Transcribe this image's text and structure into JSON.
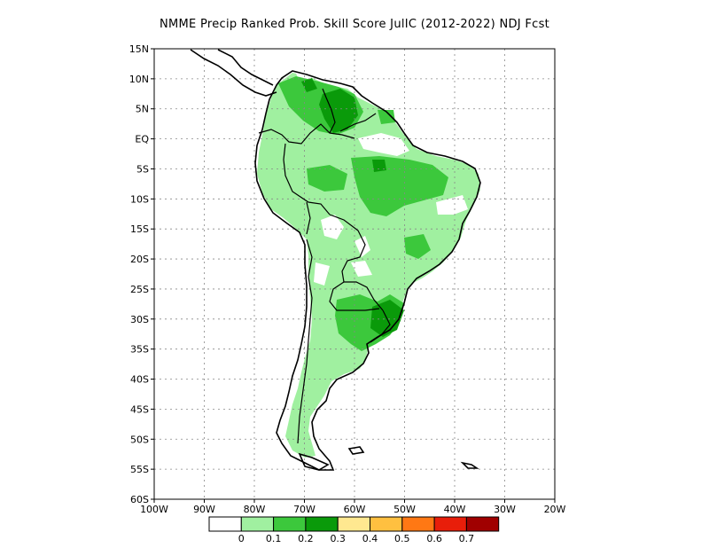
{
  "title": "NMME Precip Ranked Prob. Skill Score JulIC (2012-2022) NDJ Fcst",
  "map": {
    "lon_range": [
      -100,
      -20
    ],
    "lat_range": [
      -60,
      15
    ],
    "lat_ticks": [
      "15N",
      "10N",
      "5N",
      "EQ",
      "5S",
      "10S",
      "15S",
      "20S",
      "25S",
      "30S",
      "35S",
      "40S",
      "45S",
      "50S",
      "55S",
      "60S"
    ],
    "lon_ticks": [
      "100W",
      "90W",
      "80W",
      "70W",
      "60W",
      "50W",
      "40W",
      "30W",
      "20W"
    ],
    "gridlines": true
  },
  "colorbar": {
    "colors": [
      "#ffffff",
      "#a0f0a0",
      "#3cc83c",
      "#0a9a0a",
      "#ffe890",
      "#ffc040",
      "#ff7814",
      "#e81e0a",
      "#a00000"
    ],
    "labels": [
      "0",
      "0.1",
      "0.2",
      "0.3",
      "0.4",
      "0.5",
      "0.6",
      "0.7"
    ]
  }
}
